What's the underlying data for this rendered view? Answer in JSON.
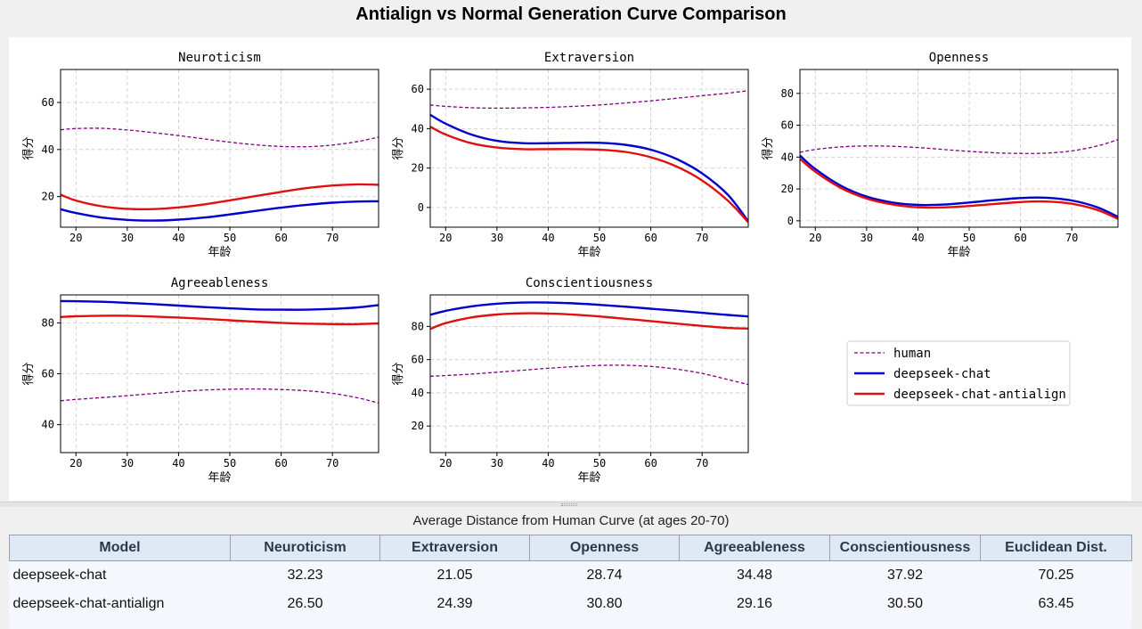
{
  "window": {
    "title": "Antialign vs Normal Generation Curve Comparison"
  },
  "chart_data": [
    {
      "type": "line",
      "title": "Neuroticism",
      "xlabel": "年龄",
      "ylabel": "得分",
      "xlim": [
        17,
        79
      ],
      "ylim": [
        7,
        74
      ],
      "xticks": [
        20,
        30,
        40,
        50,
        60,
        70
      ],
      "yticks": [
        20,
        40,
        60
      ],
      "grid": true,
      "x": [
        17,
        20,
        25,
        30,
        35,
        40,
        45,
        50,
        55,
        60,
        65,
        70,
        75,
        79
      ],
      "series": [
        {
          "name": "human",
          "values": [
            48.4,
            48.9,
            49.0,
            48.3,
            47.2,
            45.9,
            44.5,
            43.1,
            42.0,
            41.3,
            41.2,
            41.9,
            43.4,
            45.3
          ]
        },
        {
          "name": "deepseek-chat",
          "values": [
            14.6,
            13.0,
            11.1,
            10.1,
            9.8,
            10.2,
            11.1,
            12.4,
            13.9,
            15.3,
            16.5,
            17.4,
            17.9,
            18.0
          ]
        },
        {
          "name": "deepseek-chat-antialign",
          "values": [
            20.8,
            18.3,
            15.9,
            14.8,
            14.7,
            15.4,
            16.7,
            18.4,
            20.2,
            22.0,
            23.6,
            24.7,
            25.2,
            25.0
          ]
        }
      ]
    },
    {
      "type": "line",
      "title": "Extraversion",
      "xlabel": "年龄",
      "ylabel": "得分",
      "xlim": [
        17,
        79
      ],
      "ylim": [
        -10,
        70
      ],
      "xticks": [
        20,
        30,
        40,
        50,
        60,
        70
      ],
      "yticks": [
        0,
        20,
        40,
        60
      ],
      "grid": true,
      "x": [
        17,
        20,
        25,
        30,
        35,
        40,
        45,
        50,
        55,
        60,
        65,
        70,
        75,
        79
      ],
      "series": [
        {
          "name": "human",
          "values": [
            52.0,
            51.3,
            50.6,
            50.4,
            50.5,
            50.8,
            51.3,
            52.0,
            53.0,
            54.1,
            55.4,
            56.7,
            58.0,
            59.3
          ]
        },
        {
          "name": "deepseek-chat",
          "values": [
            47.0,
            42.5,
            37.0,
            33.8,
            32.6,
            32.6,
            32.8,
            32.8,
            31.8,
            29.3,
            24.6,
            17.3,
            6.5,
            -7.0
          ]
        },
        {
          "name": "deepseek-chat-antialign",
          "values": [
            41.0,
            37.0,
            32.6,
            30.4,
            29.6,
            29.6,
            29.6,
            29.3,
            28.2,
            25.5,
            20.8,
            13.7,
            3.5,
            -7.5
          ]
        }
      ]
    },
    {
      "type": "line",
      "title": "Openness",
      "xlabel": "年龄",
      "ylabel": "得分",
      "xlim": [
        17,
        79
      ],
      "ylim": [
        -4,
        95
      ],
      "xticks": [
        20,
        30,
        40,
        50,
        60,
        70
      ],
      "yticks": [
        0,
        20,
        40,
        60,
        80
      ],
      "grid": true,
      "x": [
        17,
        20,
        25,
        30,
        35,
        40,
        45,
        50,
        55,
        60,
        65,
        70,
        75,
        79
      ],
      "series": [
        {
          "name": "human",
          "values": [
            43.0,
            44.8,
            46.4,
            47.0,
            46.8,
            46.0,
            44.8,
            43.6,
            42.7,
            42.3,
            42.5,
            43.9,
            47.0,
            51.0
          ]
        },
        {
          "name": "deepseek-chat",
          "values": [
            41.0,
            32.5,
            22.0,
            15.2,
            11.5,
            10.0,
            10.2,
            11.5,
            13.0,
            14.3,
            14.5,
            12.8,
            8.5,
            2.5
          ]
        },
        {
          "name": "deepseek-chat-antialign",
          "values": [
            39.0,
            30.8,
            20.6,
            14.0,
            10.3,
            8.5,
            8.4,
            9.3,
            10.6,
            11.8,
            12.1,
            10.7,
            6.8,
            1.2
          ]
        }
      ]
    },
    {
      "type": "line",
      "title": "Agreeableness",
      "xlabel": "年龄",
      "ylabel": "得分",
      "xlim": [
        17,
        79
      ],
      "ylim": [
        29,
        91
      ],
      "xticks": [
        20,
        30,
        40,
        50,
        60,
        70
      ],
      "yticks": [
        40,
        60,
        80
      ],
      "grid": true,
      "x": [
        17,
        20,
        25,
        30,
        35,
        40,
        45,
        50,
        55,
        60,
        65,
        70,
        75,
        79
      ],
      "series": [
        {
          "name": "human",
          "values": [
            49.4,
            49.9,
            50.6,
            51.4,
            52.2,
            53.0,
            53.6,
            53.9,
            54.0,
            53.8,
            53.3,
            52.3,
            50.5,
            48.5
          ]
        },
        {
          "name": "deepseek-chat",
          "values": [
            88.6,
            88.5,
            88.3,
            87.9,
            87.4,
            86.8,
            86.2,
            85.7,
            85.3,
            85.2,
            85.2,
            85.5,
            86.1,
            87.0
          ]
        },
        {
          "name": "deepseek-chat-antialign",
          "values": [
            82.3,
            82.6,
            82.8,
            82.8,
            82.5,
            82.1,
            81.6,
            81.0,
            80.5,
            80.0,
            79.7,
            79.5,
            79.5,
            79.8
          ]
        }
      ]
    },
    {
      "type": "line",
      "title": "Conscientiousness",
      "xlabel": "年龄",
      "ylabel": "得分",
      "xlim": [
        17,
        79
      ],
      "ylim": [
        4,
        99
      ],
      "xticks": [
        20,
        30,
        40,
        50,
        60,
        70
      ],
      "yticks": [
        20,
        40,
        60,
        80
      ],
      "grid": true,
      "x": [
        17,
        20,
        25,
        30,
        35,
        40,
        45,
        50,
        55,
        60,
        65,
        70,
        75,
        79
      ],
      "series": [
        {
          "name": "human",
          "values": [
            50.0,
            50.4,
            51.3,
            52.4,
            53.6,
            54.8,
            55.8,
            56.5,
            56.6,
            55.9,
            54.3,
            51.7,
            48.0,
            45.0
          ]
        },
        {
          "name": "deepseek-chat",
          "values": [
            87.0,
            89.4,
            92.1,
            93.7,
            94.4,
            94.4,
            93.9,
            93.0,
            91.9,
            90.7,
            89.5,
            88.2,
            86.9,
            86.0
          ]
        },
        {
          "name": "deepseek-chat-antialign",
          "values": [
            78.5,
            82.0,
            85.4,
            87.2,
            87.9,
            87.8,
            87.1,
            86.0,
            84.6,
            83.2,
            81.7,
            80.3,
            79.1,
            78.7
          ]
        }
      ]
    }
  ],
  "legend": {
    "entries": [
      {
        "label": "human",
        "color": "#800080",
        "style": "dashed"
      },
      {
        "label": "deepseek-chat",
        "color": "#0000cc",
        "style": "solid"
      },
      {
        "label": "deepseek-chat-antialign",
        "color": "#e01010",
        "style": "solid"
      }
    ]
  },
  "table": {
    "title": "Average Distance from Human Curve (at ages 20-70)",
    "headers": [
      "Model",
      "Neuroticism",
      "Extraversion",
      "Openness",
      "Agreeableness",
      "Conscientiousness",
      "Euclidean Dist."
    ],
    "rows": [
      [
        "deepseek-chat",
        "32.23",
        "21.05",
        "28.74",
        "34.48",
        "37.92",
        "70.25"
      ],
      [
        "deepseek-chat-antialign",
        "26.50",
        "24.39",
        "30.80",
        "29.16",
        "30.50",
        "63.45"
      ]
    ]
  }
}
